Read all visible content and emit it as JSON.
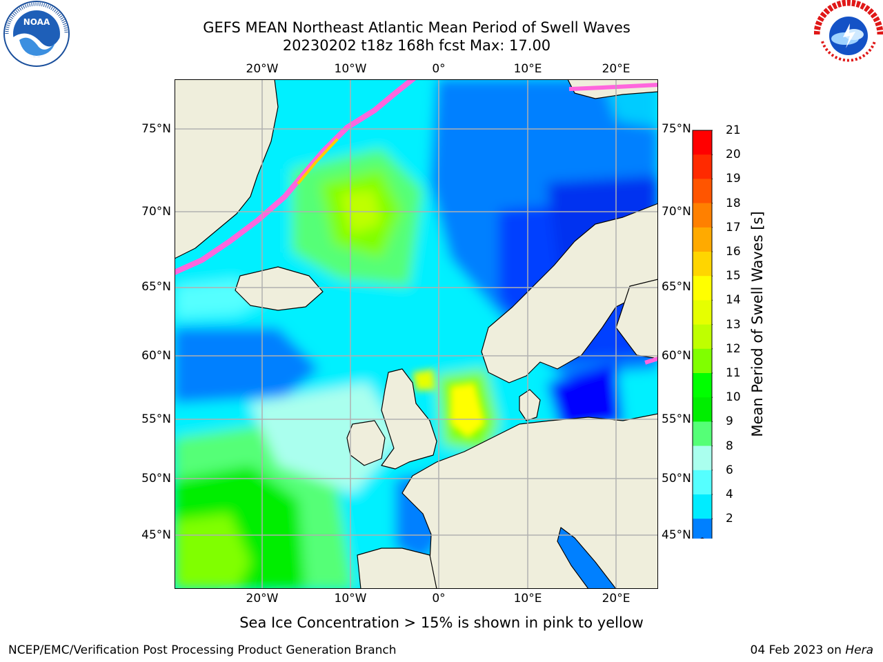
{
  "title": {
    "line1": "GEFS MEAN Northeast Atlantic Mean Period of Swell Waves",
    "line2": "20230202 t18z 168h fcst   Max: 17.00"
  },
  "logos": {
    "left": {
      "icon": "noaa-logo",
      "text": "NOAA"
    },
    "right": {
      "icon": "nws-logo",
      "text": "NATIONAL WEATHER SERVICE"
    }
  },
  "map": {
    "lon_ticks": [
      "20°W",
      "10°W",
      "0°",
      "10°E",
      "20°E"
    ],
    "lat_ticks": [
      "75°N",
      "70°N",
      "65°N",
      "60°N",
      "55°N",
      "50°N",
      "45°N"
    ],
    "land_color": "#efeedc",
    "ice_color": "#ff66dd",
    "background_color": "#00f0ff"
  },
  "colorbar": {
    "title": "Mean Period of Swell Waves [s]",
    "labels": [
      "21",
      "20",
      "19",
      "18",
      "17",
      "16",
      "15",
      "14",
      "13",
      "12",
      "11",
      "10",
      "9",
      "8",
      "6",
      "4",
      "2"
    ],
    "colors": [
      "#ff0000",
      "#ff2a00",
      "#ff5500",
      "#ff8000",
      "#ffaa00",
      "#ffd500",
      "#ffff00",
      "#e6ff00",
      "#bfff00",
      "#80ff00",
      "#00ff00",
      "#00ee00",
      "#55ff77",
      "#aaffee",
      "#55ffff",
      "#00ecff",
      "#0080ff",
      "#0000ff"
    ]
  },
  "note": "Sea Ice Concentration > 15% is shown in pink to yellow",
  "footer": {
    "left": "NCEP/EMC/Verification Post Processing Product Generation Branch",
    "date": "04 Feb 2023 on",
    "machine": "Hera"
  }
}
